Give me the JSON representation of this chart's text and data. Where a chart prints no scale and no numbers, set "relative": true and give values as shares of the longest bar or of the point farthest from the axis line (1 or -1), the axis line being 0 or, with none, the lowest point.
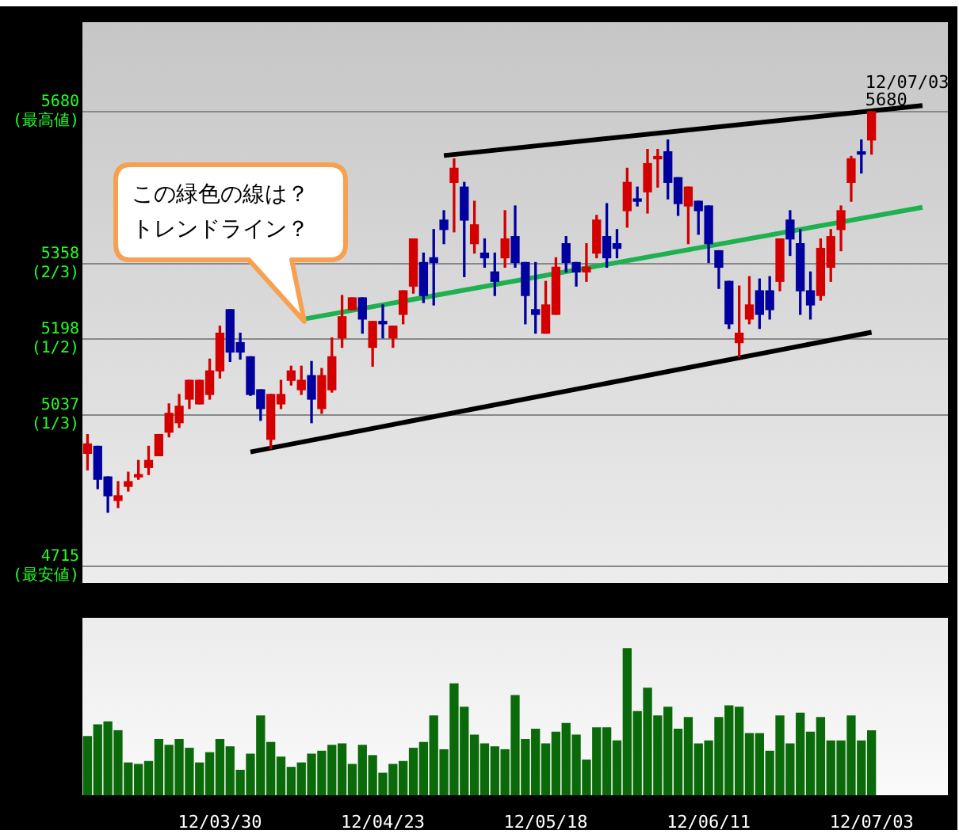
{
  "chart_data": [
    {
      "type": "candlestick",
      "categories": [
        null,
        null,
        null,
        null,
        null,
        null,
        null,
        null,
        null,
        null,
        null,
        null,
        null,
        "12/03/30",
        null,
        null,
        null,
        null,
        null,
        null,
        null,
        null,
        null,
        null,
        null,
        null,
        null,
        null,
        null,
        "12/04/23",
        null,
        null,
        null,
        null,
        null,
        null,
        null,
        null,
        null,
        null,
        null,
        null,
        null,
        null,
        null,
        "12/05/18",
        null,
        null,
        null,
        null,
        null,
        null,
        null,
        null,
        null,
        null,
        null,
        null,
        null,
        null,
        null,
        "12/06/11",
        null,
        null,
        null,
        null,
        null,
        null,
        null,
        null,
        null,
        null,
        null,
        null,
        null,
        null,
        null,
        "12/07/03",
        null,
        null,
        null,
        null,
        null,
        null,
        null
      ],
      "ohlc": [
        [
          4955,
          4995,
          4920,
          4975
        ],
        [
          4970,
          4970,
          4880,
          4900
        ],
        [
          4905,
          4905,
          4830,
          4865
        ],
        [
          4855,
          4895,
          4840,
          4865
        ],
        [
          4885,
          4915,
          4875,
          4895
        ],
        [
          4905,
          4940,
          4900,
          4910
        ],
        [
          4925,
          4970,
          4910,
          4940
        ],
        [
          4950,
          4995,
          4950,
          4995
        ],
        [
          5000,
          5060,
          4990,
          5040
        ],
        [
          5020,
          5080,
          5010,
          5055
        ],
        [
          5070,
          5110,
          5050,
          5110
        ],
        [
          5060,
          5110,
          5060,
          5110
        ],
        [
          5080,
          5155,
          5070,
          5130
        ],
        [
          5130,
          5225,
          5115,
          5210
        ],
        [
          5260,
          5260,
          5150,
          5170
        ],
        [
          5190,
          5210,
          5155,
          5170
        ],
        [
          5160,
          5160,
          5078,
          5080
        ],
        [
          5090,
          5090,
          5025,
          5050
        ],
        [
          4985,
          5080,
          4965,
          5080
        ],
        [
          5060,
          5110,
          5050,
          5080
        ],
        [
          5110,
          5140,
          5100,
          5130
        ],
        [
          5090,
          5140,
          5080,
          5110
        ],
        [
          5120,
          5150,
          5020,
          5070
        ],
        [
          5050,
          5135,
          5040,
          5120
        ],
        [
          5090,
          5200,
          5085,
          5160
        ],
        [
          5200,
          5290,
          5180,
          5245
        ],
        [
          5260,
          5285,
          5260,
          5285
        ],
        [
          5285,
          5285,
          5210,
          5240
        ],
        [
          5180,
          5235,
          5140,
          5235
        ],
        [
          5235,
          5270,
          5200,
          5230
        ],
        [
          5200,
          5225,
          5180,
          5225
        ],
        [
          5250,
          5300,
          5230,
          5300
        ],
        [
          5310,
          5410,
          5295,
          5410
        ],
        [
          5360,
          5380,
          5275,
          5290
        ],
        [
          5370,
          5430,
          5270,
          5360
        ],
        [
          5450,
          5470,
          5400,
          5430
        ],
        [
          5530,
          5580,
          5425,
          5560
        ],
        [
          5520,
          5530,
          5330,
          5450
        ],
        [
          5400,
          5490,
          5380,
          5440
        ],
        [
          5380,
          5410,
          5350,
          5370
        ],
        [
          5340,
          5380,
          5290,
          5320
        ],
        [
          5370,
          5470,
          5350,
          5410
        ],
        [
          5415,
          5480,
          5350,
          5360
        ],
        [
          5360,
          5360,
          5230,
          5290
        ],
        [
          5260,
          5360,
          5210,
          5250
        ],
        [
          5210,
          5320,
          5210,
          5270
        ],
        [
          5250,
          5370,
          5250,
          5350
        ],
        [
          5400,
          5415,
          5340,
          5360
        ],
        [
          5360,
          5360,
          5310,
          5340
        ],
        [
          5340,
          5400,
          5320,
          5350
        ],
        [
          5380,
          5460,
          5370,
          5450
        ],
        [
          5415,
          5485,
          5350,
          5370
        ],
        [
          5400,
          5430,
          5370,
          5390
        ],
        [
          5470,
          5560,
          5435,
          5530
        ],
        [
          5495,
          5520,
          5480,
          5490
        ],
        [
          5510,
          5600,
          5465,
          5570
        ],
        [
          5580,
          5600,
          5520,
          5585
        ],
        [
          5595,
          5620,
          5495,
          5530
        ],
        [
          5540,
          5540,
          5460,
          5485
        ],
        [
          5480,
          5520,
          5400,
          5520
        ],
        [
          5490,
          5490,
          5420,
          5470
        ],
        [
          5480,
          5480,
          5360,
          5400
        ],
        [
          5385,
          5385,
          5305,
          5350
        ],
        [
          5320,
          5320,
          5220,
          5230
        ],
        [
          5190,
          5310,
          5160,
          5210
        ],
        [
          5240,
          5330,
          5230,
          5270
        ],
        [
          5300,
          5325,
          5220,
          5250
        ],
        [
          5300,
          5330,
          5240,
          5260
        ],
        [
          5320,
          5410,
          5300,
          5410
        ],
        [
          5450,
          5470,
          5375,
          5410
        ],
        [
          5400,
          5430,
          5250,
          5300
        ],
        [
          5300,
          5340,
          5240,
          5270
        ],
        [
          5290,
          5410,
          5280,
          5390
        ],
        [
          5350,
          5430,
          5320,
          5415
        ],
        [
          5430,
          5480,
          5385,
          5470
        ],
        [
          5530,
          5585,
          5490,
          5580
        ],
        [
          5595,
          5620,
          5550,
          5590
        ],
        [
          5620,
          5680,
          5590,
          5680
        ],
        null,
        null,
        null,
        null,
        null,
        null,
        null
      ],
      "colors": [
        "#d40000",
        "#0000a0",
        "#0000a0",
        "#d40000",
        "#d40000",
        "#d40000",
        "#d40000",
        "#d40000",
        "#d40000",
        "#d40000",
        "#d40000",
        "#d40000",
        "#d40000",
        "#d40000",
        "#0000a0",
        "#0000a0",
        "#0000a0",
        "#0000a0",
        "#d40000",
        "#d40000",
        "#d40000",
        "#d40000",
        "#0000a0",
        "#d40000",
        "#d40000",
        "#d40000",
        "#d40000",
        "#0000a0",
        "#d40000",
        "#0000a0",
        "#d40000",
        "#d40000",
        "#d40000",
        "#0000a0",
        "#0000a0",
        "#0000a0",
        "#d40000",
        "#0000a0",
        "#d40000",
        "#0000a0",
        "#0000a0",
        "#d40000",
        "#0000a0",
        "#0000a0",
        "#0000a0",
        "#d40000",
        "#d40000",
        "#0000a0",
        "#0000a0",
        "#d40000",
        "#d40000",
        "#0000a0",
        "#0000a0",
        "#d40000",
        "#0000a0",
        "#d40000",
        "#d40000",
        "#0000a0",
        "#0000a0",
        "#d40000",
        "#0000a0",
        "#0000a0",
        "#0000a0",
        "#0000a0",
        "#d40000",
        "#d40000",
        "#0000a0",
        "#0000a0",
        "#d40000",
        "#0000a0",
        "#0000a0",
        "#0000a0",
        "#d40000",
        "#d40000",
        "#d40000",
        "#d40000",
        "#0000a0",
        "#d40000",
        null,
        null,
        null,
        null,
        null,
        null,
        null
      ],
      "ylim": [
        4680,
        5870
      ],
      "yticks": [
        {
          "value": 5680,
          "label": "5680\n(最高値)"
        },
        {
          "value": 5358,
          "label": "5358\n(2/3)"
        },
        {
          "value": 5198,
          "label": "5198\n(1/2)"
        },
        {
          "value": 5037,
          "label": "5037\n(1/3)"
        },
        {
          "value": 4715,
          "label": "4715\n(最安値)"
        }
      ],
      "grid": "y",
      "tick_labels": "y",
      "series": [
        {
          "type": "line",
          "color": "#000000",
          "values": [
            null,
            null,
            null,
            null,
            null,
            null,
            null,
            null,
            null,
            null,
            null,
            null,
            null,
            null,
            null,
            null,
            null,
            null,
            null,
            null,
            null,
            null,
            null,
            null,
            null,
            null,
            null,
            null,
            null,
            null,
            null,
            null,
            null,
            null,
            null,
            5587,
            null,
            null,
            null,
            null,
            null,
            null,
            null,
            null,
            null,
            null,
            null,
            null,
            null,
            null,
            null,
            null,
            null,
            null,
            null,
            null,
            null,
            null,
            null,
            null,
            null,
            null,
            null,
            null,
            null,
            null,
            null,
            null,
            null,
            null,
            null,
            null,
            null,
            null,
            null,
            null,
            null,
            null,
            null,
            null,
            null,
            null,
            5693,
            null,
            null
          ]
        },
        {
          "type": "line",
          "color": "#000000",
          "values": [
            null,
            null,
            null,
            null,
            null,
            null,
            null,
            null,
            null,
            null,
            null,
            null,
            null,
            null,
            null,
            null,
            4958,
            null,
            null,
            null,
            null,
            null,
            null,
            null,
            null,
            null,
            null,
            null,
            null,
            null,
            null,
            null,
            null,
            null,
            null,
            null,
            null,
            null,
            null,
            null,
            null,
            null,
            null,
            null,
            null,
            null,
            null,
            null,
            null,
            null,
            null,
            null,
            null,
            null,
            null,
            null,
            null,
            null,
            null,
            null,
            null,
            null,
            null,
            null,
            null,
            null,
            null,
            null,
            null,
            null,
            null,
            null,
            null,
            null,
            null,
            null,
            null,
            5212,
            null,
            null,
            null,
            null,
            null,
            null,
            null
          ]
        },
        {
          "type": "line",
          "color": "#1fb050",
          "values": [
            null,
            null,
            null,
            null,
            null,
            null,
            null,
            null,
            null,
            null,
            null,
            null,
            null,
            null,
            null,
            null,
            null,
            null,
            null,
            null,
            null,
            5239,
            null,
            null,
            null,
            null,
            null,
            null,
            null,
            null,
            null,
            null,
            null,
            null,
            null,
            null,
            null,
            null,
            null,
            null,
            null,
            null,
            null,
            null,
            null,
            null,
            null,
            null,
            null,
            null,
            null,
            null,
            null,
            null,
            null,
            null,
            null,
            null,
            null,
            null,
            null,
            null,
            null,
            null,
            null,
            null,
            null,
            null,
            null,
            null,
            null,
            null,
            null,
            null,
            null,
            null,
            null,
            null,
            null,
            null,
            null,
            null,
            5477,
            null,
            null
          ]
        }
      ],
      "annotations": [
        "この緑色の線は？トレンドライン？",
        {
          "text": "12/07/03\n5680",
          "x": "12/07/03",
          "y": 5680
        }
      ]
    },
    {
      "type": "bar",
      "relative": true,
      "tick_labels": "x",
      "color": "#0a6a0a",
      "categories": [
        null,
        null,
        null,
        null,
        null,
        null,
        null,
        null,
        null,
        null,
        null,
        null,
        null,
        "12/03/30",
        null,
        null,
        null,
        null,
        null,
        null,
        null,
        null,
        null,
        null,
        null,
        null,
        null,
        null,
        null,
        "12/04/23",
        null,
        null,
        null,
        null,
        null,
        null,
        null,
        null,
        null,
        null,
        null,
        null,
        null,
        null,
        null,
        "12/05/18",
        null,
        null,
        null,
        null,
        null,
        null,
        null,
        null,
        null,
        null,
        null,
        null,
        null,
        null,
        null,
        "12/06/11",
        null,
        null,
        null,
        null,
        null,
        null,
        null,
        null,
        null,
        null,
        null,
        null,
        null,
        null,
        null,
        "12/07/03",
        null,
        null,
        null,
        null,
        null,
        null,
        null
      ],
      "values": [
        0.4,
        0.48,
        0.5,
        0.44,
        0.22,
        0.21,
        0.23,
        0.38,
        0.34,
        0.38,
        0.32,
        0.22,
        0.29,
        0.38,
        0.33,
        0.17,
        0.28,
        0.54,
        0.36,
        0.26,
        0.19,
        0.22,
        0.28,
        0.3,
        0.34,
        0.35,
        0.21,
        0.34,
        0.27,
        0.15,
        0.21,
        0.23,
        0.32,
        0.36,
        0.54,
        0.31,
        0.76,
        0.6,
        0.41,
        0.35,
        0.33,
        0.31,
        0.68,
        0.38,
        0.45,
        0.35,
        0.43,
        0.49,
        0.41,
        0.24,
        0.46,
        0.46,
        0.37,
        1,
        0.57,
        0.73,
        0.54,
        0.6,
        0.45,
        0.53,
        0.35,
        0.37,
        0.53,
        0.61,
        0.6,
        0.42,
        0.42,
        0.3,
        0.54,
        0.35,
        0.56,
        0.43,
        0.53,
        0.37,
        0.37,
        0.54,
        0.37,
        0.44,
        null,
        null,
        null,
        null,
        null,
        null,
        null
      ]
    }
  ]
}
